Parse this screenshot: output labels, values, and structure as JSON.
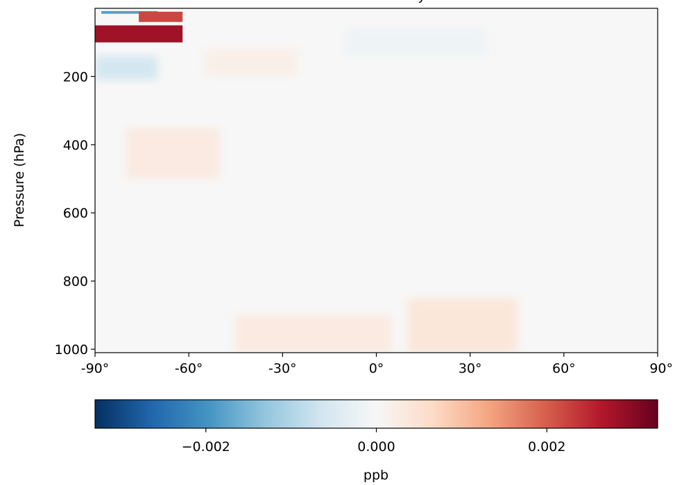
{
  "chart_data": {
    "type": "heatmap",
    "title": "",
    "title_visible_fragment": "y",
    "xlabel": "",
    "ylabel": "Pressure (hPa)",
    "x_ticks": [
      "-90°",
      "-60°",
      "-30°",
      "0°",
      "30°",
      "60°",
      "90°"
    ],
    "x_tick_values": [
      -90,
      -60,
      -30,
      0,
      30,
      60,
      90
    ],
    "xlim": [
      -90,
      90
    ],
    "y_ticks": [
      "200",
      "400",
      "600",
      "800",
      "1000"
    ],
    "y_tick_values": [
      200,
      400,
      600,
      800,
      1000
    ],
    "ylim": [
      1010,
      0
    ],
    "y_inverted": true,
    "colormap": "RdBu_r",
    "colorbar": {
      "label": "ppb",
      "orientation": "horizontal",
      "range": [
        -0.0033,
        0.0033
      ],
      "ticks": [
        "−0.002",
        "0.000",
        "0.002"
      ],
      "tick_values": [
        -0.002,
        0.0,
        0.002
      ]
    },
    "features": [
      {
        "lat": [
          -90,
          -62
        ],
        "p": [
          50,
          100
        ],
        "value": 0.0028
      },
      {
        "lat": [
          -88,
          -70
        ],
        "p": [
          8,
          16
        ],
        "value": -0.0018
      },
      {
        "lat": [
          -76,
          -62
        ],
        "p": [
          10,
          40
        ],
        "value": 0.0022
      },
      {
        "lat": [
          -90,
          -70
        ],
        "p": [
          140,
          210
        ],
        "value": -0.0006
      },
      {
        "lat": [
          -55,
          -25
        ],
        "p": [
          120,
          200
        ],
        "value": 0.0002
      },
      {
        "lat": [
          -10,
          35
        ],
        "p": [
          60,
          140
        ],
        "value": -0.00015
      },
      {
        "lat": [
          -80,
          -50
        ],
        "p": [
          350,
          500
        ],
        "value": 0.0003
      },
      {
        "lat": [
          -45,
          5
        ],
        "p": [
          900,
          1010
        ],
        "value": 0.0003
      },
      {
        "lat": [
          10,
          45
        ],
        "p": [
          850,
          1010
        ],
        "value": 0.0004
      }
    ]
  }
}
